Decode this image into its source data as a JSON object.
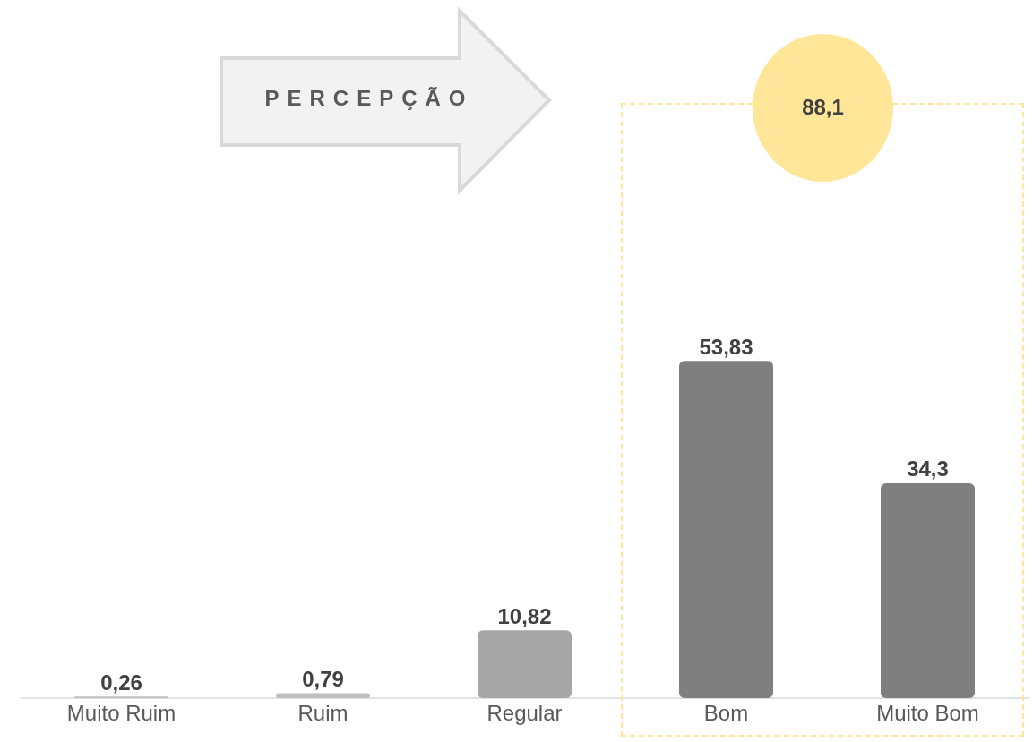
{
  "chart_data": {
    "type": "bar",
    "categories": [
      "Muito Ruim",
      "Ruim",
      "Regular",
      "Bom",
      "Muito Bom"
    ],
    "values": [
      0.26,
      0.79,
      10.82,
      53.83,
      34.3
    ],
    "value_labels": [
      "0,26",
      "0,79",
      "10,82",
      "53,83",
      "34,3"
    ],
    "colors": [
      "#bfbfbf",
      "#bfbfbf",
      "#a6a6a6",
      "#7f7f7f",
      "#7f7f7f"
    ],
    "annotations": [
      "PERCEPÇÃO",
      "88,1"
    ]
  }
}
